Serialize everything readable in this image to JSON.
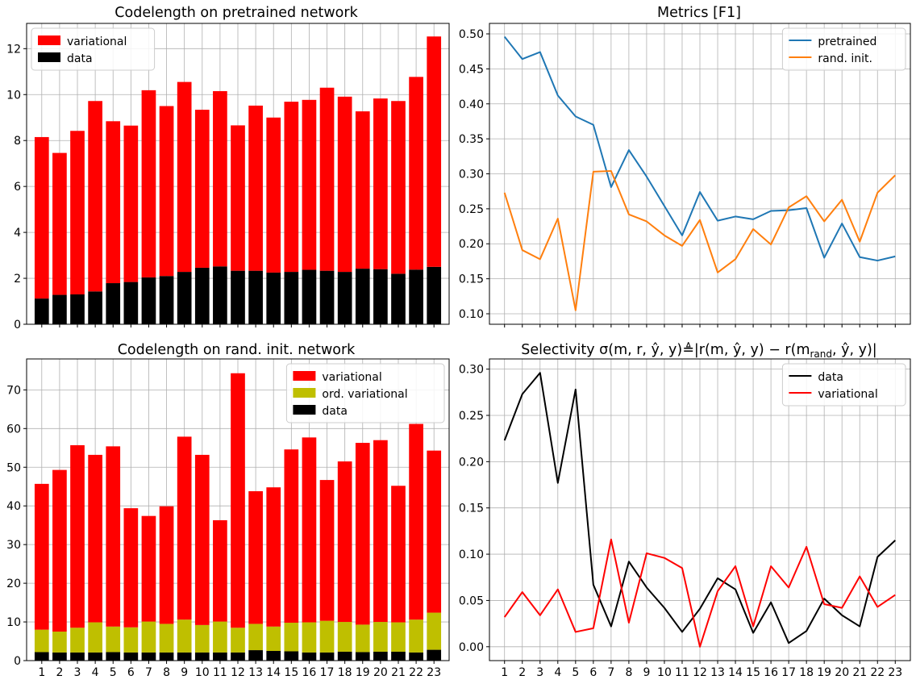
{
  "chart_data": [
    {
      "type": "bar",
      "title": "Codelength on pretrained network",
      "xlabel": "",
      "ylabel": "",
      "stacked": true,
      "grid": true,
      "legend_position": "top-left",
      "ylim": [
        0,
        13.1
      ],
      "yticks": [
        0,
        2,
        4,
        6,
        8,
        10,
        12
      ],
      "categories": [
        "1",
        "2",
        "3",
        "4",
        "5",
        "6",
        "7",
        "8",
        "9",
        "10",
        "11",
        "12",
        "13",
        "14",
        "15",
        "16",
        "17",
        "18",
        "19",
        "20",
        "21",
        "22",
        "23"
      ],
      "show_xticklabels": false,
      "series": [
        {
          "name": "data",
          "color": "#000000",
          "values": [
            1.12,
            1.28,
            1.3,
            1.43,
            1.79,
            1.84,
            2.04,
            2.1,
            2.28,
            2.46,
            2.52,
            2.33,
            2.33,
            2.25,
            2.28,
            2.37,
            2.33,
            2.28,
            2.42,
            2.4,
            2.2,
            2.38,
            2.5
          ]
        },
        {
          "name": "variational",
          "color": "#ff0000",
          "values": [
            7.03,
            6.18,
            7.12,
            8.29,
            7.05,
            6.81,
            8.15,
            7.4,
            8.27,
            6.88,
            7.63,
            6.33,
            7.19,
            6.75,
            7.41,
            7.4,
            7.97,
            7.63,
            6.85,
            7.43,
            7.52,
            8.39,
            10.03
          ]
        }
      ]
    },
    {
      "type": "line",
      "title": "Metrics [F1]",
      "xlabel": "",
      "ylabel": "",
      "grid": true,
      "legend_position": "top-right",
      "ylim": [
        0.085,
        0.515
      ],
      "yticks": [
        0.1,
        0.15,
        0.2,
        0.25,
        0.3,
        0.35,
        0.4,
        0.45,
        0.5
      ],
      "x": [
        1,
        2,
        3,
        4,
        5,
        6,
        7,
        8,
        9,
        10,
        11,
        12,
        13,
        14,
        15,
        16,
        17,
        18,
        19,
        20,
        21,
        22,
        23
      ],
      "show_xticklabels": false,
      "series": [
        {
          "name": "pretrained",
          "color": "#1f77b4",
          "values": [
            0.496,
            0.464,
            0.474,
            0.412,
            0.382,
            0.37,
            0.281,
            0.334,
            0.296,
            0.254,
            0.212,
            0.274,
            0.233,
            0.239,
            0.235,
            0.247,
            0.248,
            0.251,
            0.18,
            0.229,
            0.181,
            0.176,
            0.182
          ]
        },
        {
          "name": "rand. init.",
          "color": "#ff7f0e",
          "values": [
            0.273,
            0.191,
            0.178,
            0.236,
            0.105,
            0.303,
            0.304,
            0.242,
            0.232,
            0.212,
            0.197,
            0.234,
            0.159,
            0.178,
            0.221,
            0.199,
            0.252,
            0.268,
            0.232,
            0.263,
            0.203,
            0.273,
            0.298
          ]
        }
      ]
    },
    {
      "type": "bar",
      "title": "Codelength on rand. init. network",
      "xlabel": "",
      "ylabel": "",
      "stacked": true,
      "grid": true,
      "legend_position": "top-right",
      "ylim": [
        0,
        78
      ],
      "yticks": [
        0,
        10,
        20,
        30,
        40,
        50,
        60,
        70
      ],
      "categories": [
        "1",
        "2",
        "3",
        "4",
        "5",
        "6",
        "7",
        "8",
        "9",
        "10",
        "11",
        "12",
        "13",
        "14",
        "15",
        "16",
        "17",
        "18",
        "19",
        "20",
        "21",
        "22",
        "23"
      ],
      "show_xticklabels": true,
      "series": [
        {
          "name": "data",
          "color": "#000000",
          "values": [
            2.2,
            2.1,
            2.1,
            2.1,
            2.2,
            2.1,
            2.1,
            2.1,
            2.1,
            2.1,
            2.1,
            2.1,
            2.7,
            2.5,
            2.4,
            2.1,
            2.1,
            2.3,
            2.2,
            2.3,
            2.3,
            2.1,
            2.8
          ]
        },
        {
          "name": "ord. variational",
          "color": "#bfbf00",
          "values": [
            5.8,
            5.4,
            6.4,
            7.8,
            6.6,
            6.5,
            8.0,
            7.4,
            8.5,
            7.1,
            8.0,
            6.4,
            6.8,
            6.3,
            7.4,
            7.8,
            8.2,
            7.7,
            7.1,
            7.7,
            7.6,
            8.5,
            9.6
          ]
        },
        {
          "name": "variational",
          "color": "#ff0000",
          "values": [
            37.7,
            41.8,
            47.2,
            43.3,
            46.6,
            30.8,
            27.3,
            30.4,
            47.3,
            44.0,
            26.2,
            65.8,
            34.3,
            36.0,
            44.8,
            47.8,
            36.4,
            41.5,
            47.0,
            47.0,
            35.3,
            50.6,
            41.9
          ]
        }
      ]
    },
    {
      "type": "line",
      "title": "Selectivity σ(m,r,ŷ,y)≜|r(m,ŷ,y) − r(mrand,ŷ,y)|",
      "title_parts": {
        "a": "Selectivity σ(m, r, ŷ, y)≜|r(m, ŷ, y) − r(m",
        "sub": "rand",
        "b": ", ŷ, y)|"
      },
      "xlabel": "",
      "ylabel": "",
      "grid": true,
      "legend_position": "top-right",
      "ylim": [
        -0.015,
        0.311
      ],
      "yticks": [
        0.0,
        0.05,
        0.1,
        0.15,
        0.2,
        0.25,
        0.3
      ],
      "x": [
        1,
        2,
        3,
        4,
        5,
        6,
        7,
        8,
        9,
        10,
        11,
        12,
        13,
        14,
        15,
        16,
        17,
        18,
        19,
        20,
        21,
        22,
        23
      ],
      "show_xticklabels": true,
      "series": [
        {
          "name": "data",
          "color": "#000000",
          "values": [
            0.223,
            0.273,
            0.296,
            0.177,
            0.278,
            0.067,
            0.022,
            0.092,
            0.064,
            0.042,
            0.016,
            0.041,
            0.074,
            0.062,
            0.015,
            0.048,
            0.004,
            0.017,
            0.052,
            0.034,
            0.022,
            0.097,
            0.115
          ]
        },
        {
          "name": "variational",
          "color": "#ff0000",
          "values": [
            0.032,
            0.059,
            0.034,
            0.062,
            0.016,
            0.02,
            0.116,
            0.026,
            0.101,
            0.096,
            0.085,
            0.0,
            0.06,
            0.087,
            0.022,
            0.087,
            0.064,
            0.108,
            0.046,
            0.042,
            0.076,
            0.043,
            0.056
          ]
        }
      ]
    }
  ]
}
